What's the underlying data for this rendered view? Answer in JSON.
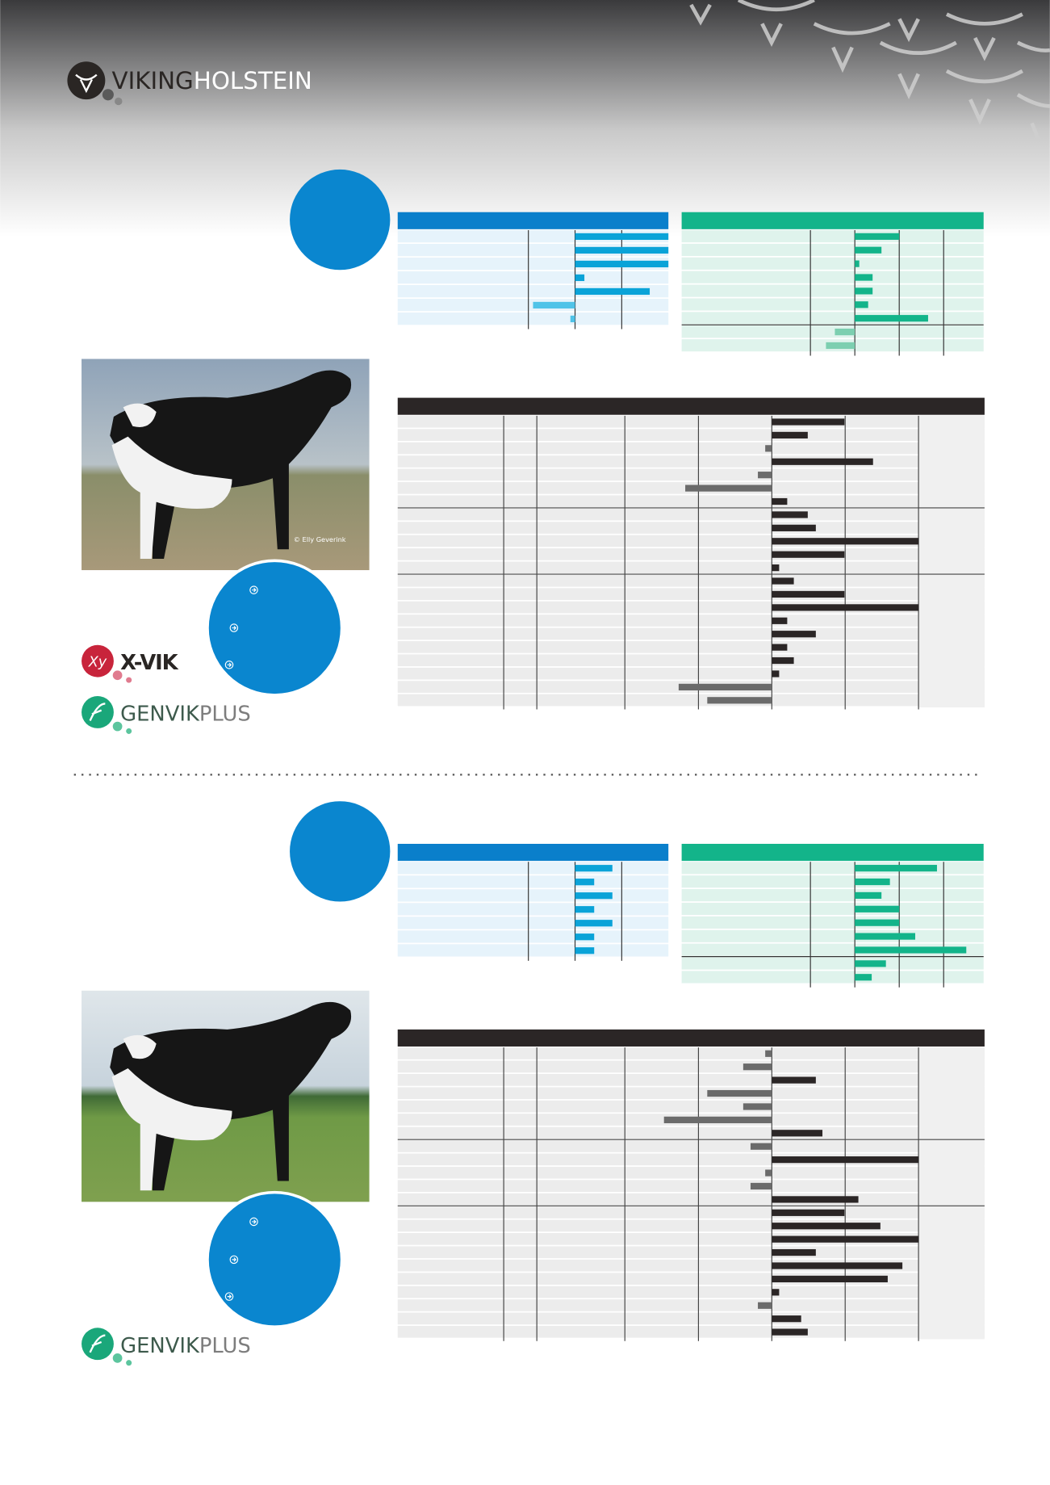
{
  "header": {
    "logo": {
      "name_1": "VIKING",
      "name_2": "HOLSTEIN"
    }
  },
  "bulls": [
    {
      "photo_credit": "© Elly Geverink",
      "badges": [
        {
          "mark": "Xy",
          "name": "X-VIK"
        },
        {
          "name_1": "GENVIK",
          "name_2": "PLUS"
        }
      ],
      "charts": [
        {
          "type": "bar",
          "orientation": "horizontal",
          "color": "#0aa3d8",
          "negative_color": "#4fc3e8",
          "xlim": [
            -3.8,
            2
          ],
          "xticks": [
            -1,
            0,
            1
          ],
          "groups": [
            {
              "values": [
                2,
                2,
                2,
                0.2,
                1.6,
                -0.9,
                -0.1
              ]
            }
          ]
        },
        {
          "type": "bar",
          "orientation": "horizontal",
          "color": "#13b48a",
          "negative_color": "#7ccfb0",
          "xlim": [
            -3.9,
            2.9
          ],
          "xticks": [
            -1,
            0,
            1,
            2
          ],
          "groups": [
            {
              "values": [
                1,
                0.6,
                0.1,
                0.4,
                0.4,
                0.3,
                1.65
              ]
            },
            {
              "values": [
                -0.45,
                -0.65
              ]
            }
          ]
        },
        {
          "type": "bar",
          "orientation": "horizontal",
          "color": "#2b2626",
          "negative_color": "#6b6b6b",
          "xlim": [
            -5.1,
            2.9
          ],
          "xticks": [
            -1,
            0,
            1,
            2
          ],
          "groups": [
            {
              "values": [
                0.99,
                0.49,
                -0.09,
                1.38,
                -0.19,
                -1.18,
                0.21
              ]
            },
            {
              "values": [
                0.49,
                0.6,
                2,
                0.99,
                0.1
              ]
            },
            {
              "values": [
                0.3,
                0.99,
                2,
                0.21,
                0.6,
                0.21,
                0.3,
                0.1,
                -1.27,
                -0.88
              ]
            }
          ]
        }
      ]
    },
    {
      "badges": [
        {
          "name_1": "GENVIK",
          "name_2": "PLUS"
        }
      ],
      "charts": [
        {
          "type": "bar",
          "orientation": "horizontal",
          "color": "#0aa3d8",
          "negative_color": "#4fc3e8",
          "xlim": [
            -3.8,
            2
          ],
          "xticks": [
            -1,
            0,
            1
          ],
          "groups": [
            {
              "values": [
                0.8,
                0.41,
                0.8,
                0.41,
                0.8,
                0.41,
                0.41
              ]
            }
          ]
        },
        {
          "type": "bar",
          "orientation": "horizontal",
          "color": "#13b48a",
          "negative_color": "#7ccfb0",
          "xlim": [
            -3.9,
            2.9
          ],
          "xticks": [
            -1,
            0,
            1,
            2
          ],
          "groups": [
            {
              "values": [
                1.85,
                0.79,
                0.6,
                1,
                1,
                1.36,
                2.51
              ]
            },
            {
              "values": [
                0.7,
                0.38
              ]
            }
          ]
        },
        {
          "type": "bar",
          "orientation": "horizontal",
          "color": "#2b2626",
          "negative_color": "#6b6b6b",
          "xlim": [
            -5.1,
            2.9
          ],
          "xticks": [
            -1,
            0,
            1,
            2
          ],
          "groups": [
            {
              "values": [
                -0.09,
                -0.39,
                0.6,
                -0.88,
                -0.39,
                -1.47,
                0.69
              ]
            },
            {
              "values": [
                -0.29,
                2,
                -0.09,
                -0.29,
                1.18
              ]
            },
            {
              "values": [
                0.99,
                1.48,
                2,
                0.6,
                1.78,
                1.58,
                0.1,
                -0.19,
                0.4,
                0.49
              ]
            }
          ]
        }
      ]
    }
  ]
}
